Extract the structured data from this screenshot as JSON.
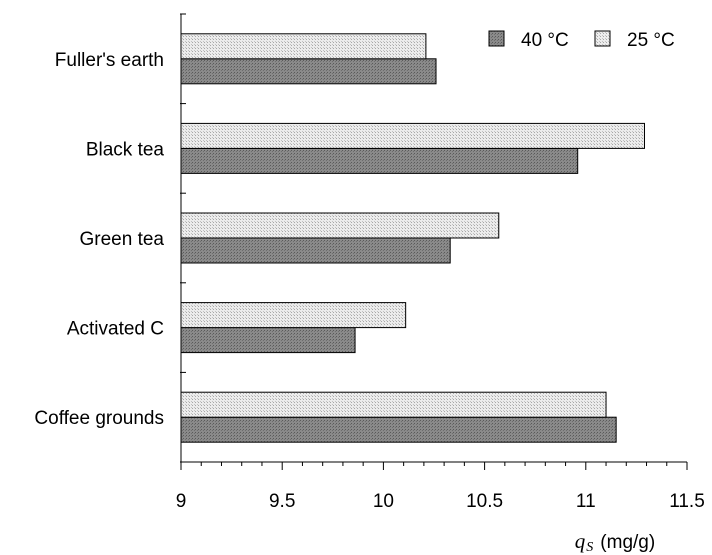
{
  "chart_data": {
    "type": "bar",
    "orientation": "horizontal",
    "categories": [
      "Fuller's earth",
      "Black tea",
      "Green tea",
      "Activated C",
      "Coffee grounds"
    ],
    "series": [
      {
        "name": "40 °C",
        "values": [
          10.26,
          10.96,
          10.33,
          9.86,
          11.15
        ],
        "color": "#808080",
        "pattern": "dark-stipple"
      },
      {
        "name": "25 °C",
        "values": [
          10.21,
          11.29,
          10.57,
          10.11,
          11.1
        ],
        "color": "#e0e0e0",
        "pattern": "light-stipple"
      }
    ],
    "xlim": [
      9,
      11.5
    ],
    "xticks": [
      "9",
      "9.5",
      "10",
      "10.5",
      "11",
      "11.5"
    ],
    "xlabel": {
      "symbol": "q",
      "subscript": "S",
      "unit": "(mg/g)"
    },
    "legend_position": "top-right",
    "grid": false
  }
}
